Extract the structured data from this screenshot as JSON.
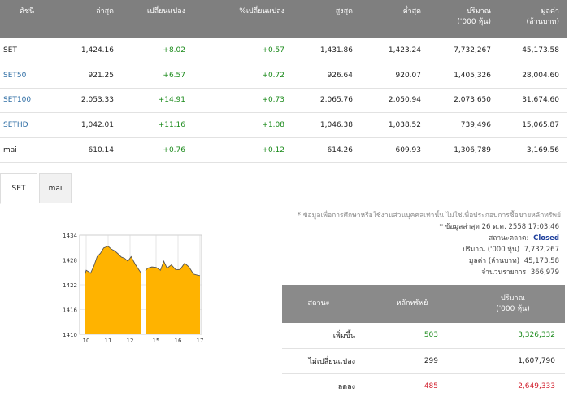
{
  "index_table": {
    "headers": [
      "ดัชนี",
      "ล่าสุด",
      "เปลี่ยนแปลง",
      "%เปลี่ยนแปลง",
      "สูงสุด",
      "ต่ำสุด",
      "ปริมาณ\n('000 หุ้น)",
      "มูลค่า\n(ล้านบาท)"
    ],
    "header_lines": [
      [
        "ดัชนี"
      ],
      [
        "ล่าสุด"
      ],
      [
        "เปลี่ยนแปลง"
      ],
      [
        "%เปลี่ยนแปลง"
      ],
      [
        "สูงสุด"
      ],
      [
        "ต่ำสุด"
      ],
      [
        "ปริมาณ",
        "('000 หุ้น)"
      ],
      [
        "มูลค่า",
        "(ล้านบาท)"
      ]
    ],
    "rows": [
      {
        "name": "SET",
        "last": "1,424.16",
        "change": "+8.02",
        "pct": "+0.57",
        "high": "1,431.86",
        "low": "1,423.24",
        "volume": "7,732,267",
        "value": "45,173.58"
      },
      {
        "name": "SET50",
        "last": "921.25",
        "change": "+6.57",
        "pct": "+0.72",
        "high": "926.64",
        "low": "920.07",
        "volume": "1,405,326",
        "value": "28,004.60"
      },
      {
        "name": "SET100",
        "last": "2,053.33",
        "change": "+14.91",
        "pct": "+0.73",
        "high": "2,065.76",
        "low": "2,050.94",
        "volume": "2,073,650",
        "value": "31,674.60"
      },
      {
        "name": "SETHD",
        "last": "1,042.01",
        "change": "+11.16",
        "pct": "+1.08",
        "high": "1,046.38",
        "low": "1,038.52",
        "volume": "739,496",
        "value": "15,065.87"
      },
      {
        "name": "mai",
        "last": "610.14",
        "change": "+0.76",
        "pct": "+0.12",
        "high": "614.26",
        "low": "609.93",
        "volume": "1,306,789",
        "value": "3,169.56"
      }
    ]
  },
  "tabs": [
    {
      "label": "SET",
      "active": true
    },
    {
      "label": "mai",
      "active": false
    }
  ],
  "info": {
    "note": "* ข้อมูลเพื่อการศึกษาหรือใช้งานส่วนบุคคลเท่านั้น ไม่ใช่เพื่อประกอบการซื้อขายหลักทรัพย์",
    "updated_label": "* ข้อมูลล่าสุด 26 ต.ค. 2558 17:03:46",
    "status_label": "สถานะตลาด:",
    "status_value": "Closed",
    "volume_label": "ปริมาณ ('000 หุ้น)",
    "volume_value": "7,732,267",
    "value_label": "มูลค่า (ล้านบาท)",
    "value_value": "45,173.58",
    "trades_label": "จำนวนรายการ",
    "trades_value": "366,979"
  },
  "status_table": {
    "headers": [
      "สถานะ",
      "หลักทรัพย์",
      "ปริมาณ\n('000 หุ้น)"
    ],
    "h_status": "สถานะ",
    "h_securities": "หลักทรัพย์",
    "h_volume_1": "ปริมาณ",
    "h_volume_2": "('000 หุ้น)",
    "rows": [
      {
        "label": "เพิ่มขึ้น",
        "securities": "503",
        "volume": "3,326,332",
        "color": "#1a8a1a"
      },
      {
        "label": "ไม่เปลี่ยนแปลง",
        "securities": "299",
        "volume": "1,607,790",
        "color": "#222222"
      },
      {
        "label": "ลดลง",
        "securities": "485",
        "volume": "2,649,333",
        "color": "#d11c2a"
      }
    ]
  },
  "chart_data": {
    "type": "area",
    "y_ticks": [
      "1434",
      "1428",
      "1422",
      "1416",
      "1410"
    ],
    "ylim": [
      1410,
      1434
    ],
    "x_ticks": [
      "10",
      "11",
      "12",
      "15",
      "16",
      "17"
    ],
    "x_tick_hours": [
      10,
      11,
      12,
      15,
      16,
      17
    ],
    "fill_color": "#ffb300",
    "line_color": "#555555",
    "sessions": [
      {
        "x": [
          9.95,
          10.0,
          10.1,
          10.2,
          10.35,
          10.5,
          10.65,
          10.8,
          11.0,
          11.15,
          11.3,
          11.45,
          11.6,
          11.75,
          11.9,
          12.05,
          12.25,
          12.5
        ],
        "y": [
          1424.6,
          1425.5,
          1425.2,
          1424.8,
          1426.5,
          1428.8,
          1429.6,
          1430.9,
          1431.3,
          1430.6,
          1430.2,
          1429.5,
          1428.7,
          1428.4,
          1427.7,
          1428.8,
          1426.9,
          1425.0
        ]
      },
      {
        "x": [
          14.5,
          14.6,
          14.8,
          15.0,
          15.2,
          15.35,
          15.5,
          15.7,
          15.9,
          16.1,
          16.3,
          16.5,
          16.7,
          16.9,
          17.0
        ],
        "y": [
          1425.4,
          1426.0,
          1426.3,
          1426.2,
          1425.5,
          1427.7,
          1426.0,
          1426.8,
          1425.6,
          1425.7,
          1427.2,
          1426.3,
          1424.6,
          1424.3,
          1424.2
        ]
      }
    ]
  }
}
